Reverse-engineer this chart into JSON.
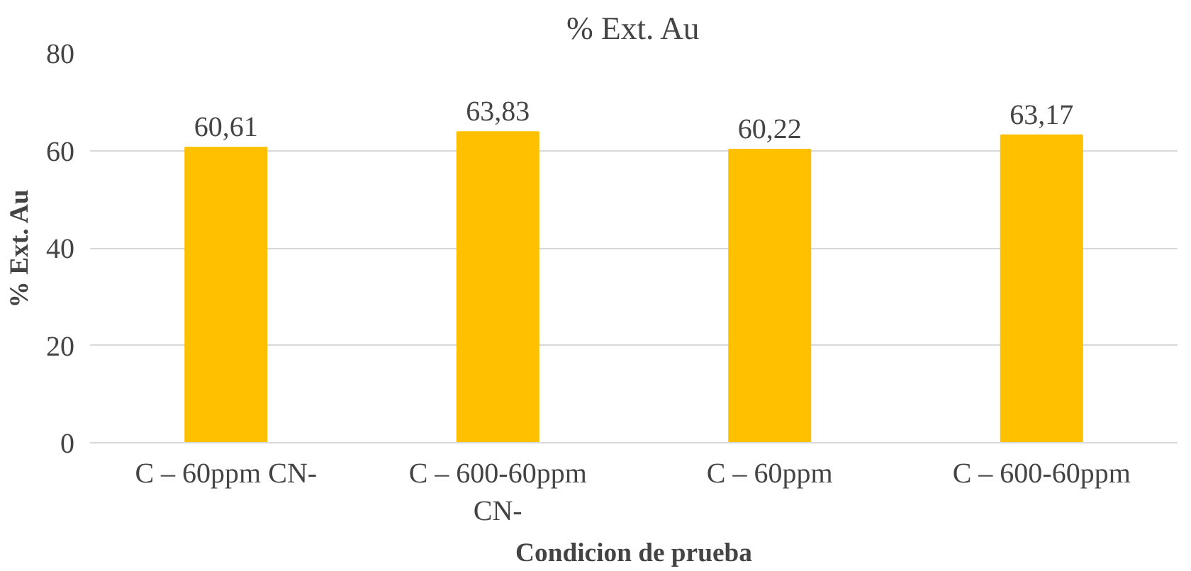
{
  "chart_data": {
    "type": "bar",
    "title": "% Ext. Au",
    "xlabel": "Condicion de prueba",
    "ylabel": "% Ext. Au",
    "categories": [
      "C – 60ppm CN-",
      "C – 600-60ppm CN-",
      "C – 60ppm",
      "C – 600-60ppm"
    ],
    "values": [
      60.61,
      63.83,
      60.22,
      63.17
    ],
    "value_labels": [
      "60,61",
      "63,83",
      "60,22",
      "63,17"
    ],
    "color": "#ffc000",
    "ylim": [
      0,
      80
    ],
    "yticks": [
      0,
      20,
      40,
      60,
      80
    ],
    "grid": "y"
  }
}
